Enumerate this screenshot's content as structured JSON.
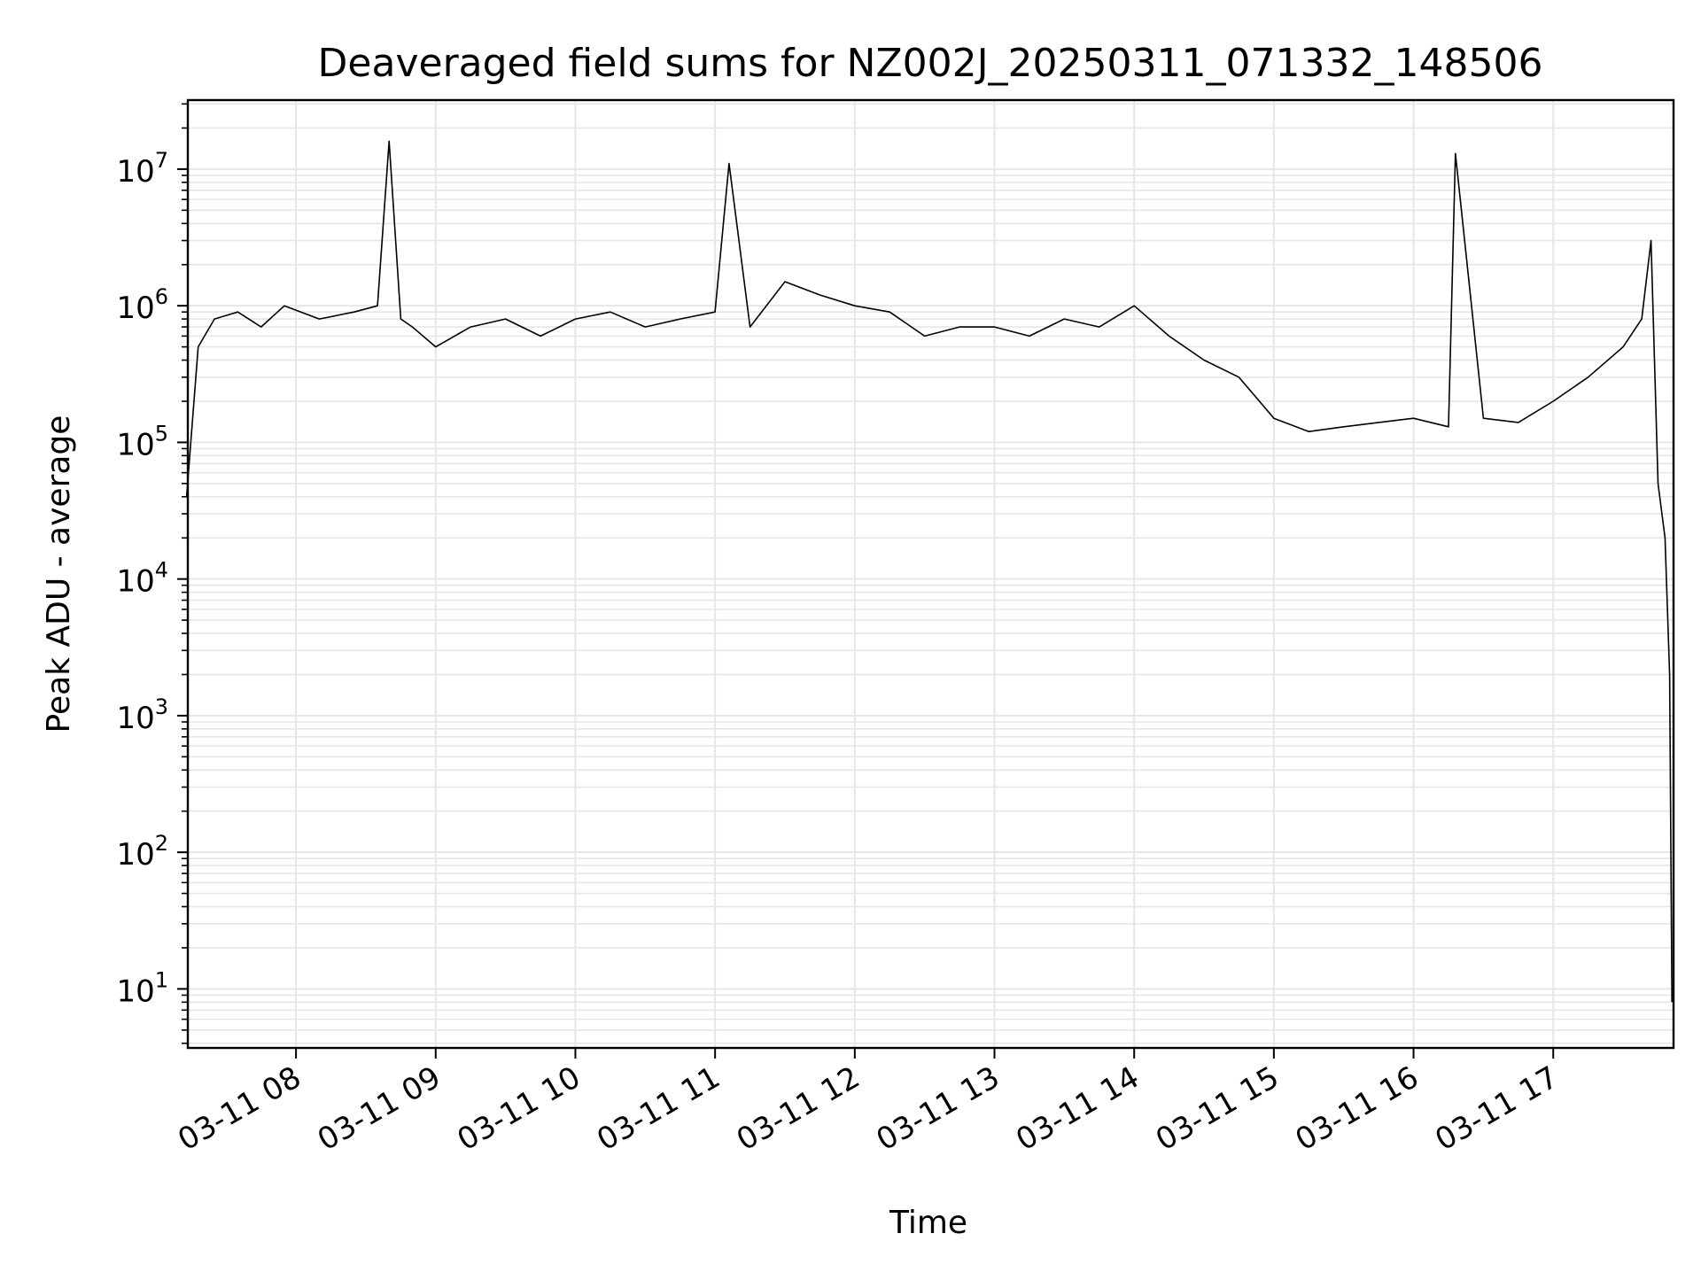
{
  "chart_data": {
    "type": "line",
    "title": "Deaveraged field sums for NZ002J_20250311_071332_148506",
    "xlabel": "Time",
    "ylabel": "Peak ADU - average",
    "xlim": [
      "03-11 07:13:32",
      "03-11 17:51:40"
    ],
    "ylim": [
      3.7,
      32000000
    ],
    "yscale": "log",
    "grid": true,
    "legend": "none",
    "line_color": "#000000",
    "grid_color": "#e6e6e6",
    "x_tick_labels": [
      "03-11 08",
      "03-11 09",
      "03-11 10",
      "03-11 11",
      "03-11 12",
      "03-11 13",
      "03-11 14",
      "03-11 15",
      "03-11 16",
      "03-11 17"
    ],
    "x_tick_values": [
      "03-11 08:00",
      "03-11 09:00",
      "03-11 10:00",
      "03-11 11:00",
      "03-11 12:00",
      "03-11 13:00",
      "03-11 14:00",
      "03-11 15:00",
      "03-11 16:00",
      "03-11 17:00"
    ],
    "y_tick_labels": [
      {
        "base": "10",
        "exp": "1"
      },
      {
        "base": "10",
        "exp": "2"
      },
      {
        "base": "10",
        "exp": "3"
      },
      {
        "base": "10",
        "exp": "4"
      },
      {
        "base": "10",
        "exp": "5"
      },
      {
        "base": "10",
        "exp": "6"
      },
      {
        "base": "10",
        "exp": "7"
      }
    ],
    "y_tick_values": [
      10,
      100,
      1000,
      10000,
      100000,
      1000000,
      10000000
    ],
    "series": [
      {
        "x": [
          "03-11 07:13",
          "03-11 07:18",
          "03-11 07:25",
          "03-11 07:35",
          "03-11 07:45",
          "03-11 07:55",
          "03-11 08:10",
          "03-11 08:25",
          "03-11 08:35",
          "03-11 08:40",
          "03-11 08:45",
          "03-11 08:50",
          "03-11 09:00",
          "03-11 09:15",
          "03-11 09:30",
          "03-11 09:45",
          "03-11 10:00",
          "03-11 10:15",
          "03-11 10:30",
          "03-11 10:45",
          "03-11 11:00",
          "03-11 11:06",
          "03-11 11:15",
          "03-11 11:30",
          "03-11 11:45",
          "03-11 12:00",
          "03-11 12:15",
          "03-11 12:30",
          "03-11 12:45",
          "03-11 13:00",
          "03-11 13:15",
          "03-11 13:30",
          "03-11 13:45",
          "03-11 14:00",
          "03-11 14:15",
          "03-11 14:30",
          "03-11 14:45",
          "03-11 15:00",
          "03-11 15:15",
          "03-11 15:30",
          "03-11 15:45",
          "03-11 16:00",
          "03-11 16:15",
          "03-11 16:18",
          "03-11 16:30",
          "03-11 16:45",
          "03-11 17:00",
          "03-11 17:15",
          "03-11 17:30",
          "03-11 17:38",
          "03-11 17:42",
          "03-11 17:45",
          "03-11 17:48",
          "03-11 17:50",
          "03-11 17:51"
        ],
        "y": [
          40000,
          500000,
          800000,
          900000,
          700000,
          1000000,
          800000,
          900000,
          1000000,
          16000000,
          800000,
          700000,
          500000,
          700000,
          800000,
          600000,
          800000,
          900000,
          700000,
          800000,
          900000,
          11000000,
          700000,
          1500000,
          1200000,
          1000000,
          900000,
          600000,
          700000,
          700000,
          600000,
          800000,
          700000,
          1000000,
          600000,
          400000,
          300000,
          150000,
          120000,
          130000,
          140000,
          150000,
          130000,
          13000000,
          150000,
          140000,
          200000,
          300000,
          500000,
          800000,
          3000000,
          50000,
          20000,
          2000,
          8
        ]
      }
    ]
  }
}
